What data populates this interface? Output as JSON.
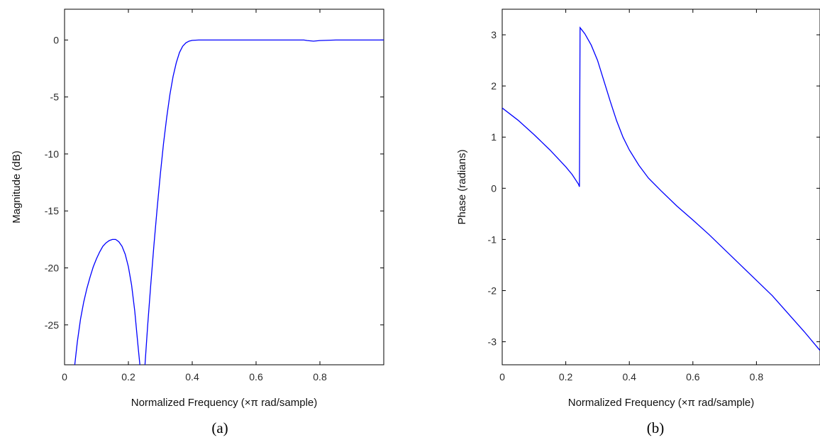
{
  "chart_data": [
    {
      "type": "line",
      "caption": "(a)",
      "xlabel": "Normalized Frequency (×π rad/sample)",
      "ylabel": "Magnitude (dB)",
      "xlim": [
        0,
        1.0
      ],
      "ylim": [
        -28.5,
        2.7
      ],
      "xticks": [
        0,
        0.2,
        0.4,
        0.6,
        0.8
      ],
      "xtick_labels": [
        "0",
        "0.2",
        "0.4",
        "0.6",
        "0.8"
      ],
      "yticks": [
        0,
        -5,
        -10,
        -15,
        -20,
        -25
      ],
      "ytick_labels": [
        "0",
        "-5",
        "-10",
        "-15",
        "-20",
        "-25"
      ],
      "grid": false,
      "line_color": "#0000ff",
      "segments": [
        {
          "x": [
            0.032,
            0.04,
            0.05,
            0.06,
            0.07,
            0.08,
            0.09,
            0.1,
            0.11,
            0.12,
            0.13,
            0.14,
            0.15,
            0.16,
            0.17,
            0.18,
            0.19,
            0.2,
            0.21,
            0.22,
            0.229,
            0.236
          ],
          "y": [
            -28.5,
            -26.5,
            -24.5,
            -23.0,
            -21.8,
            -20.8,
            -19.9,
            -19.2,
            -18.6,
            -18.1,
            -17.8,
            -17.6,
            -17.5,
            -17.5,
            -17.7,
            -18.1,
            -18.8,
            -19.9,
            -21.5,
            -23.8,
            -26.5,
            -28.5
          ]
        },
        {
          "x": [
            0.252,
            0.26,
            0.27,
            0.28,
            0.29,
            0.3,
            0.31,
            0.32,
            0.33,
            0.34,
            0.35,
            0.36,
            0.37,
            0.38,
            0.39,
            0.4,
            0.42,
            0.45,
            0.5,
            0.55,
            0.6,
            0.65,
            0.7,
            0.75,
            0.76,
            0.78,
            0.8,
            0.85,
            0.9,
            0.95,
            1.0
          ],
          "y": [
            -28.5,
            -25.2,
            -21.5,
            -18.0,
            -14.8,
            -11.8,
            -9.1,
            -6.8,
            -4.8,
            -3.2,
            -2.0,
            -1.1,
            -0.55,
            -0.25,
            -0.1,
            -0.03,
            0.0,
            0.0,
            0.0,
            0.0,
            0.0,
            0.0,
            0.0,
            0.0,
            -0.05,
            -0.1,
            -0.05,
            0.0,
            0.0,
            0.0,
            0.0
          ]
        }
      ]
    },
    {
      "type": "line",
      "caption": "(b)",
      "xlabel": "Normalized Frequency (×π rad/sample)",
      "ylabel": "Phase (radians)",
      "xlim": [
        0,
        1.0
      ],
      "ylim": [
        -3.45,
        3.5
      ],
      "xticks": [
        0,
        0.2,
        0.4,
        0.6,
        0.8
      ],
      "xtick_labels": [
        "0",
        "0.2",
        "0.4",
        "0.6",
        "0.8"
      ],
      "yticks": [
        3,
        2,
        1,
        0,
        -1,
        -2,
        -3
      ],
      "ytick_labels": [
        "3",
        "2",
        "1",
        "0",
        "-1",
        "-2",
        "-3"
      ],
      "grid": false,
      "line_color": "#0000ff",
      "segments": [
        {
          "x": [
            0.0,
            0.05,
            0.1,
            0.15,
            0.2,
            0.22,
            0.24,
            0.243,
            0.245,
            0.25,
            0.26,
            0.28,
            0.3,
            0.32,
            0.34,
            0.36,
            0.38,
            0.4,
            0.43,
            0.46,
            0.5,
            0.55,
            0.6,
            0.65,
            0.7,
            0.75,
            0.8,
            0.85,
            0.9,
            0.95,
            1.0
          ],
          "y": [
            1.57,
            1.33,
            1.05,
            0.75,
            0.42,
            0.27,
            0.08,
            0.03,
            3.14,
            3.1,
            3.02,
            2.8,
            2.5,
            2.1,
            1.7,
            1.32,
            1.0,
            0.75,
            0.45,
            0.2,
            -0.05,
            -0.35,
            -0.62,
            -0.9,
            -1.2,
            -1.5,
            -1.8,
            -2.1,
            -2.45,
            -2.8,
            -3.17
          ]
        }
      ]
    }
  ]
}
